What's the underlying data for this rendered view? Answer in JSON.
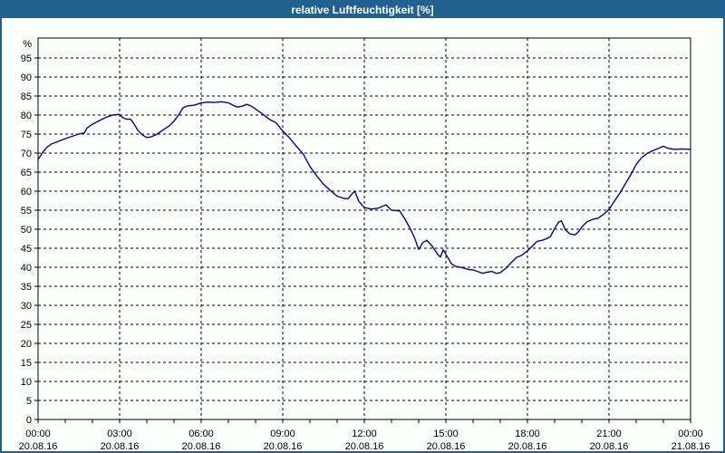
{
  "window": {
    "title": "relative Luftfeuchtigkeit [%]"
  },
  "colors": {
    "titlebar_bg": "#20618f",
    "titlebar_text": "#ffffff",
    "outer_border": "#20618f",
    "background": "#fbfffb",
    "plot_border": "#000000",
    "grid": "#000000",
    "tick_label": "#000000",
    "line": "#0000a0"
  },
  "chart_data": {
    "type": "line",
    "title": "relative Luftfeuchtigkeit [%]",
    "ylabel": "%",
    "xlabel": "",
    "ylim": [
      0,
      100
    ],
    "x_range_hours": [
      0,
      24
    ],
    "grid": "dashed black, horizontal every 5 %, vertical every 3 h",
    "legend_position": "none",
    "y_ticks": [
      0,
      5,
      10,
      15,
      20,
      25,
      30,
      35,
      40,
      45,
      50,
      55,
      60,
      65,
      70,
      75,
      80,
      85,
      90,
      95
    ],
    "y_unit_label": "%",
    "x_minor_tick_hours": 1,
    "x_ticks": [
      {
        "hour": 0,
        "time": "00:00",
        "date": "20.08.16"
      },
      {
        "hour": 3,
        "time": "03:00",
        "date": "20.08.16"
      },
      {
        "hour": 6,
        "time": "06:00",
        "date": "20.08.16"
      },
      {
        "hour": 9,
        "time": "09:00",
        "date": "20.08.16"
      },
      {
        "hour": 12,
        "time": "12:00",
        "date": "20.08.16"
      },
      {
        "hour": 15,
        "time": "15:00",
        "date": "20.08.16"
      },
      {
        "hour": 18,
        "time": "18:00",
        "date": "20.08.16"
      },
      {
        "hour": 21,
        "time": "21:00",
        "date": "20.08.16"
      },
      {
        "hour": 24,
        "time": "00:00",
        "date": "21.08.16"
      }
    ],
    "series": [
      {
        "name": "relative Luftfeuchtigkeit",
        "color": "#0000a0",
        "points": [
          [
            0.0,
            68.3
          ],
          [
            0.17,
            70.2
          ],
          [
            0.33,
            71.6
          ],
          [
            0.5,
            72.4
          ],
          [
            0.75,
            73.1
          ],
          [
            1.0,
            73.8
          ],
          [
            1.25,
            74.4
          ],
          [
            1.5,
            75.0
          ],
          [
            1.7,
            75.3
          ],
          [
            1.8,
            76.6
          ],
          [
            2.0,
            77.6
          ],
          [
            2.25,
            78.5
          ],
          [
            2.5,
            79.4
          ],
          [
            2.75,
            80.0
          ],
          [
            3.0,
            80.2
          ],
          [
            3.1,
            79.4
          ],
          [
            3.25,
            78.9
          ],
          [
            3.4,
            78.9
          ],
          [
            3.5,
            78.0
          ],
          [
            3.67,
            76.0
          ],
          [
            3.83,
            74.8
          ],
          [
            4.0,
            74.1
          ],
          [
            4.17,
            74.3
          ],
          [
            4.33,
            74.8
          ],
          [
            4.5,
            75.6
          ],
          [
            4.67,
            76.4
          ],
          [
            4.83,
            77.2
          ],
          [
            5.0,
            78.4
          ],
          [
            5.17,
            80.0
          ],
          [
            5.33,
            81.9
          ],
          [
            5.5,
            82.4
          ],
          [
            5.75,
            82.6
          ],
          [
            6.0,
            83.2
          ],
          [
            6.25,
            83.4
          ],
          [
            6.5,
            83.3
          ],
          [
            6.75,
            83.5
          ],
          [
            7.0,
            83.2
          ],
          [
            7.17,
            82.6
          ],
          [
            7.33,
            82.1
          ],
          [
            7.5,
            82.3
          ],
          [
            7.67,
            82.8
          ],
          [
            7.83,
            82.4
          ],
          [
            8.0,
            81.6
          ],
          [
            8.25,
            80.3
          ],
          [
            8.5,
            78.9
          ],
          [
            8.75,
            78.0
          ],
          [
            9.0,
            75.8
          ],
          [
            9.25,
            74.0
          ],
          [
            9.5,
            71.8
          ],
          [
            9.75,
            69.8
          ],
          [
            10.0,
            66.5
          ],
          [
            10.25,
            64.0
          ],
          [
            10.5,
            61.8
          ],
          [
            10.75,
            60.2
          ],
          [
            11.0,
            58.7
          ],
          [
            11.25,
            58.1
          ],
          [
            11.4,
            58.0
          ],
          [
            11.55,
            59.3
          ],
          [
            11.65,
            60.0
          ],
          [
            11.8,
            57.3
          ],
          [
            12.0,
            55.7
          ],
          [
            12.25,
            55.3
          ],
          [
            12.5,
            55.5
          ],
          [
            12.8,
            56.4
          ],
          [
            13.0,
            55.0
          ],
          [
            13.3,
            54.8
          ],
          [
            13.5,
            52.6
          ],
          [
            13.7,
            50.0
          ],
          [
            13.85,
            47.7
          ],
          [
            14.0,
            44.7
          ],
          [
            14.15,
            46.5
          ],
          [
            14.3,
            47.1
          ],
          [
            14.5,
            45.5
          ],
          [
            14.7,
            43.4
          ],
          [
            14.8,
            42.7
          ],
          [
            14.9,
            44.6
          ],
          [
            15.0,
            43.4
          ],
          [
            15.2,
            41.0
          ],
          [
            15.33,
            40.3
          ],
          [
            15.6,
            39.9
          ],
          [
            15.85,
            39.4
          ],
          [
            16.0,
            39.3
          ],
          [
            16.2,
            38.8
          ],
          [
            16.35,
            38.4
          ],
          [
            16.5,
            38.7
          ],
          [
            16.7,
            38.9
          ],
          [
            16.85,
            38.4
          ],
          [
            17.0,
            38.6
          ],
          [
            17.2,
            39.7
          ],
          [
            17.4,
            41.2
          ],
          [
            17.6,
            42.6
          ],
          [
            17.8,
            43.2
          ],
          [
            18.0,
            44.3
          ],
          [
            18.2,
            45.7
          ],
          [
            18.35,
            46.8
          ],
          [
            18.55,
            47.1
          ],
          [
            18.7,
            47.5
          ],
          [
            18.85,
            48.1
          ],
          [
            19.0,
            50.2
          ],
          [
            19.15,
            51.9
          ],
          [
            19.25,
            52.2
          ],
          [
            19.4,
            49.8
          ],
          [
            19.55,
            48.8
          ],
          [
            19.75,
            48.5
          ],
          [
            19.9,
            49.5
          ],
          [
            20.0,
            50.6
          ],
          [
            20.2,
            52.0
          ],
          [
            20.4,
            52.6
          ],
          [
            20.6,
            52.9
          ],
          [
            20.8,
            53.9
          ],
          [
            21.0,
            55.2
          ],
          [
            21.2,
            57.4
          ],
          [
            21.4,
            59.5
          ],
          [
            21.6,
            61.9
          ],
          [
            21.8,
            64.3
          ],
          [
            22.0,
            67.0
          ],
          [
            22.2,
            68.8
          ],
          [
            22.4,
            69.9
          ],
          [
            22.6,
            70.6
          ],
          [
            22.8,
            71.2
          ],
          [
            23.0,
            71.8
          ],
          [
            23.15,
            71.3
          ],
          [
            23.4,
            71.0
          ],
          [
            23.7,
            71.1
          ],
          [
            24.0,
            71.0
          ]
        ]
      }
    ]
  }
}
